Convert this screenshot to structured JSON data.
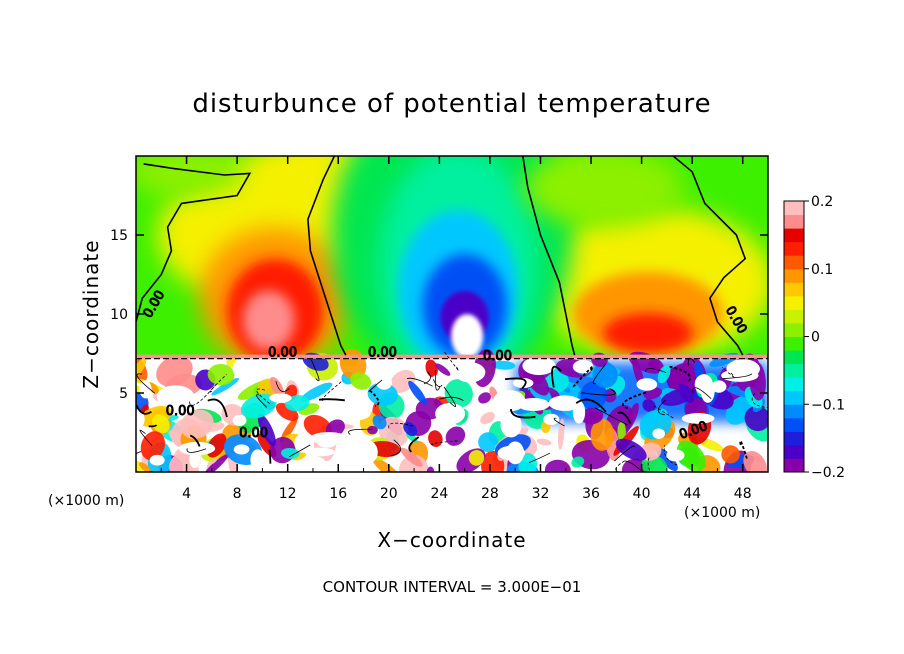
{
  "chart_data": {
    "type": "heatmap",
    "title": "disturbunce of potential temperature",
    "xlabel": "X−coordinate",
    "ylabel": "Z−coordinate",
    "x_unit_left": "(×1000 m)",
    "x_unit_right": "(×1000 m)",
    "footer": "CONTOUR INTERVAL = 3.000E−01",
    "xlim": [
      0,
      50
    ],
    "ylim": [
      0,
      20
    ],
    "x_ticks": [
      4,
      8,
      12,
      16,
      20,
      24,
      28,
      32,
      36,
      40,
      44,
      48
    ],
    "y_ticks": [
      5,
      10,
      15
    ],
    "colorbar": {
      "range": [
        -0.2,
        0.2
      ],
      "tick_values": [
        0.2,
        0.1,
        0,
        -0.1,
        -0.2
      ],
      "tick_labels": [
        "0.2",
        "0.1",
        "0",
        "−0.1",
        "−0.2"
      ],
      "colors": [
        "#8800aa",
        "#4b00c8",
        "#1e1edc",
        "#0050f5",
        "#008cff",
        "#00c8ff",
        "#00f0e6",
        "#00f0a0",
        "#00e650",
        "#3cf000",
        "#8cf000",
        "#c8f000",
        "#f5f000",
        "#ffc800",
        "#ff9600",
        "#ff5a00",
        "#ff1e00",
        "#e60000",
        "#ff8c8c",
        "#ffbebe"
      ]
    },
    "contour_labels": [
      "0.00",
      "0.00",
      "0.00",
      "0.00",
      "0.00",
      "0.00",
      "0.00",
      "0.00"
    ],
    "features": [
      {
        "x": 11,
        "z": 10,
        "value": 0.17
      },
      {
        "x": 26,
        "z": 10,
        "value": -0.2
      },
      {
        "x": 41,
        "z": 10,
        "value": 0.09
      },
      {
        "x": 25,
        "z": 18,
        "value": -0.05
      }
    ],
    "interface_height": 7.3
  }
}
